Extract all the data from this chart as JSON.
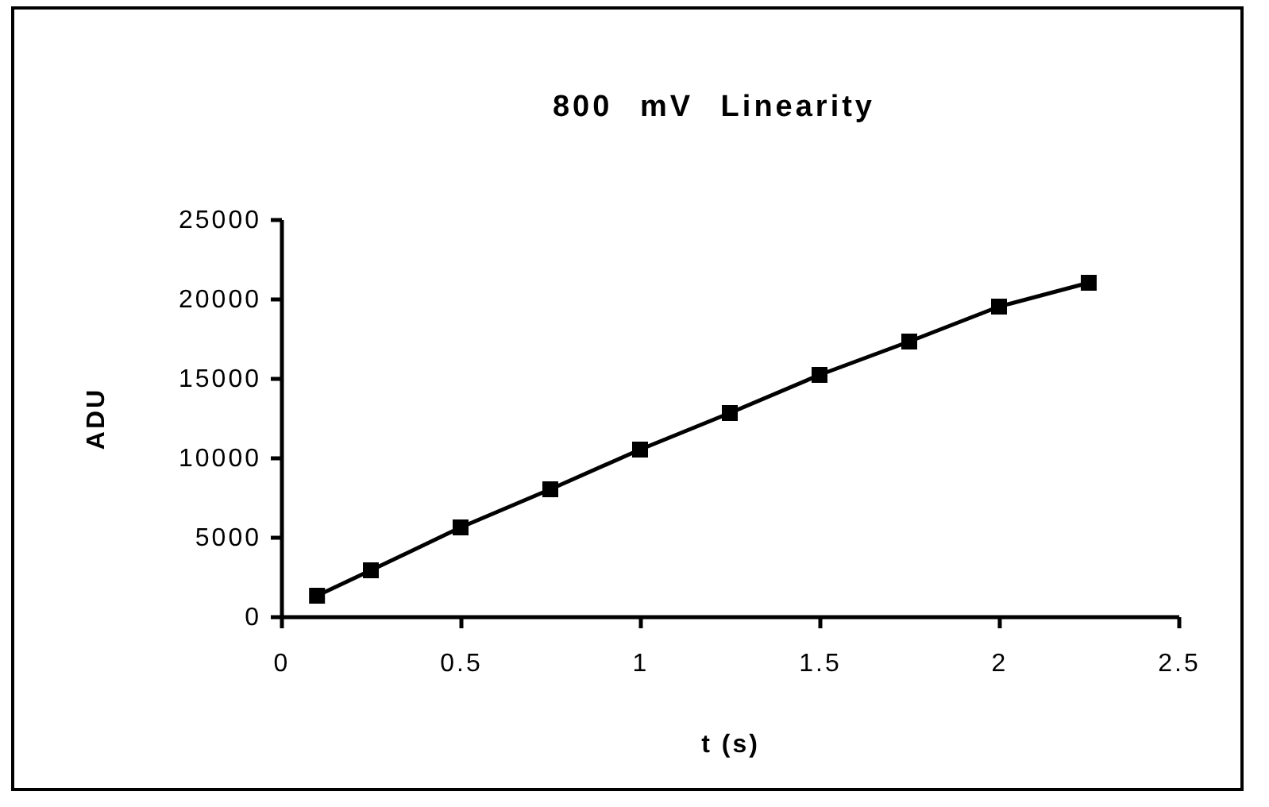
{
  "chart_data": {
    "type": "line",
    "title": "800 mV Linearity",
    "xlabel": "t (s)",
    "ylabel": "ADU",
    "x": [
      0.1,
      0.25,
      0.5,
      0.75,
      1,
      1.25,
      1.5,
      1.75,
      2,
      2.25
    ],
    "series": [
      {
        "color": "#000000",
        "values": [
          1300,
          2900,
          5600,
          8000,
          10500,
          12800,
          15200,
          17300,
          19500,
          21000
        ]
      }
    ],
    "xlim": [
      0,
      2.5
    ],
    "xticks": [
      0,
      0.5,
      1,
      1.5,
      2,
      2.5
    ],
    "ylim": [
      0,
      25000
    ],
    "yticks": [
      0,
      5000,
      10000,
      15000,
      20000,
      25000
    ],
    "marker": "square",
    "line_style": "solid"
  }
}
